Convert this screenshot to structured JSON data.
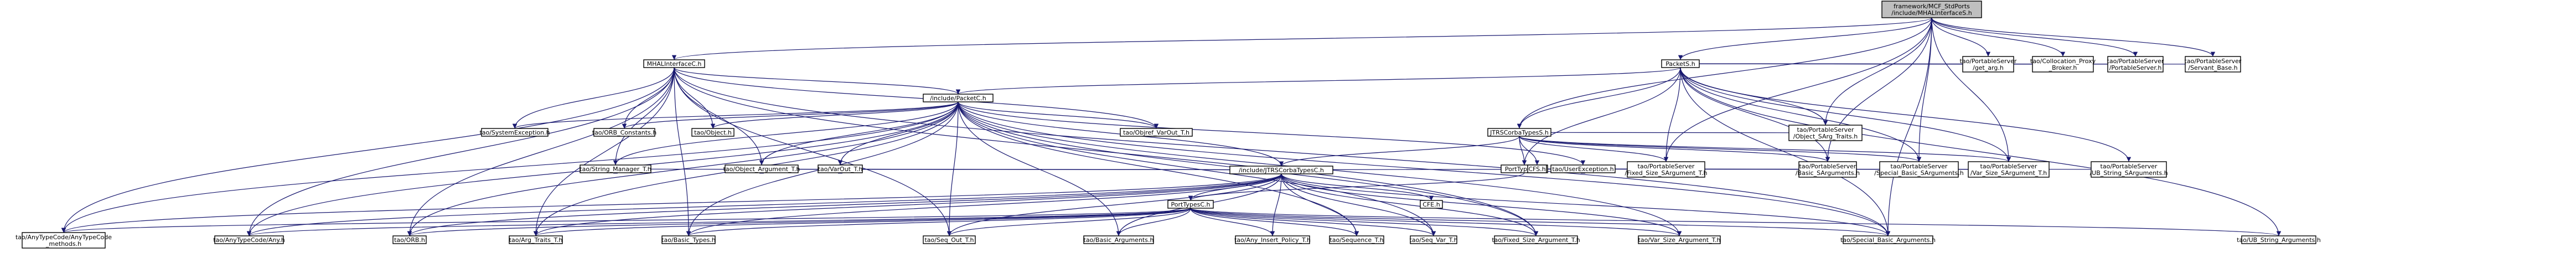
{
  "colors": {
    "node_fill": "#ffffff",
    "root_fill": "#bfbfbf",
    "node_stroke": "#000000",
    "edge": "#191970"
  },
  "nodes": [
    {
      "id": "root",
      "lines": [
        "framework/MCF_StdPorts",
        "/include/MHALInterfaceS.h"
      ],
      "root": true
    },
    {
      "id": "mhal",
      "lines": [
        "MHALInterfaceC.h"
      ]
    },
    {
      "id": "packets",
      "lines": [
        "PacketS.h"
      ]
    },
    {
      "id": "packetc",
      "lines": [
        "/include/PacketC.h"
      ]
    },
    {
      "id": "jtrss",
      "lines": [
        "JTRSCorbaTypesS.h"
      ]
    },
    {
      "id": "porttypess",
      "lines": [
        "PortTypesS.h"
      ]
    },
    {
      "id": "jtrsc",
      "lines": [
        "/include/JTRSCorbaTypesC.h"
      ]
    },
    {
      "id": "porttypesc",
      "lines": [
        "PortTypesC.h"
      ]
    },
    {
      "id": "sysexc",
      "lines": [
        "tao/SystemException.h"
      ]
    },
    {
      "id": "orbconst",
      "lines": [
        "tao/ORB_Constants.h"
      ]
    },
    {
      "id": "object",
      "lines": [
        "tao/Object.h"
      ]
    },
    {
      "id": "objvarout",
      "lines": [
        "tao/Objref_VarOut_T.h"
      ]
    },
    {
      "id": "strmgr",
      "lines": [
        "tao/String_Manager_T.h"
      ]
    },
    {
      "id": "objarg",
      "lines": [
        "tao/Object_Argument_T.h"
      ]
    },
    {
      "id": "varout",
      "lines": [
        "tao/VarOut_T.h"
      ]
    },
    {
      "id": "cfe",
      "lines": [
        "CFE.h"
      ]
    },
    {
      "id": "userexc",
      "lines": [
        "tao/UserException.h"
      ]
    },
    {
      "id": "cfs",
      "lines": [
        "CFS.h"
      ]
    },
    {
      "id": "anycode",
      "lines": [
        "tao/AnyTypeCode/AnyTypeCode",
        "_methods.h"
      ]
    },
    {
      "id": "anyany",
      "lines": [
        "tao/AnyTypeCode/Any.h"
      ]
    },
    {
      "id": "orbh",
      "lines": [
        "tao/ORB.h"
      ]
    },
    {
      "id": "argtraits",
      "lines": [
        "tao/Arg_Traits_T.h"
      ]
    },
    {
      "id": "basictypes",
      "lines": [
        "tao/Basic_Types.h"
      ]
    },
    {
      "id": "seqout",
      "lines": [
        "tao/Seq_Out_T.h"
      ]
    },
    {
      "id": "basicargs",
      "lines": [
        "tao/Basic_Arguments.h"
      ]
    },
    {
      "id": "anyinsert",
      "lines": [
        "tao/Any_Insert_Policy_T.h"
      ]
    },
    {
      "id": "sequence",
      "lines": [
        "tao/Sequence_T.h"
      ]
    },
    {
      "id": "seqvar",
      "lines": [
        "tao/Seq_Var_T.h"
      ]
    },
    {
      "id": "fixedsize",
      "lines": [
        "tao/Fixed_Size_Argument_T.h"
      ]
    },
    {
      "id": "varsize",
      "lines": [
        "tao/Var_Size_Argument_T.h"
      ]
    },
    {
      "id": "specialbasic",
      "lines": [
        "tao/Special_Basic_Arguments.h"
      ]
    },
    {
      "id": "ubstring",
      "lines": [
        "tao/UB_String_Arguments.h"
      ]
    },
    {
      "id": "ps_getarg",
      "lines": [
        "tao/PortableServer",
        "/get_arg.h"
      ]
    },
    {
      "id": "collocation",
      "lines": [
        "tao/Collocation_Proxy",
        "_Broker.h"
      ]
    },
    {
      "id": "ps_ps",
      "lines": [
        "tao/PortableServer",
        "/PortableServer.h"
      ]
    },
    {
      "id": "ps_servant",
      "lines": [
        "tao/PortableServer",
        "/Servant_Base.h"
      ]
    },
    {
      "id": "ps_objsarg",
      "lines": [
        "tao/PortableServer",
        "/Object_SArg_Traits.h"
      ]
    },
    {
      "id": "ps_fixed",
      "lines": [
        "tao/PortableServer",
        "/Fixed_Size_SArgument_T.h"
      ]
    },
    {
      "id": "ps_basic",
      "lines": [
        "tao/PortableServer",
        "/Basic_SArguments.h"
      ]
    },
    {
      "id": "ps_special",
      "lines": [
        "tao/PortableServer",
        "/Special_Basic_SArguments.h"
      ]
    },
    {
      "id": "ps_varsize",
      "lines": [
        "tao/PortableServer",
        "/Var_Size_SArgument_T.h"
      ]
    },
    {
      "id": "ps_ubstring",
      "lines": [
        "tao/PortableServer",
        "/UB_String_SArguments.h"
      ]
    }
  ],
  "edges": [
    [
      "root",
      "mhal"
    ],
    [
      "root",
      "packets"
    ],
    [
      "root",
      "ps_servant"
    ],
    [
      "root",
      "ps_ps"
    ],
    [
      "root",
      "collocation"
    ],
    [
      "root",
      "ps_getarg"
    ],
    [
      "root",
      "ps_objsarg"
    ],
    [
      "root",
      "ps_fixed"
    ],
    [
      "root",
      "ps_basic"
    ],
    [
      "root",
      "ps_special"
    ],
    [
      "root",
      "ps_varsize"
    ],
    [
      "root",
      "jtrss"
    ],
    [
      "root",
      "specialbasic"
    ],
    [
      "mhal",
      "packetc"
    ],
    [
      "mhal",
      "sysexc"
    ],
    [
      "mhal",
      "orbconst"
    ],
    [
      "mhal",
      "object"
    ],
    [
      "mhal",
      "objvarout"
    ],
    [
      "mhal",
      "strmgr"
    ],
    [
      "mhal",
      "objarg"
    ],
    [
      "mhal",
      "anycode"
    ],
    [
      "mhal",
      "anyany"
    ],
    [
      "mhal",
      "orbh"
    ],
    [
      "mhal",
      "argtraits"
    ],
    [
      "mhal",
      "basictypes"
    ],
    [
      "mhal",
      "seqout"
    ],
    [
      "mhal",
      "specialbasic"
    ],
    [
      "mhal",
      "fixedsize"
    ],
    [
      "packets",
      "jtrss"
    ],
    [
      "packets",
      "porttypess"
    ],
    [
      "packets",
      "ps_getarg"
    ],
    [
      "packets",
      "collocation"
    ],
    [
      "packets",
      "ps_ps"
    ],
    [
      "packets",
      "ps_servant"
    ],
    [
      "packets",
      "ps_objsarg"
    ],
    [
      "packets",
      "ps_fixed"
    ],
    [
      "packets",
      "ps_basic"
    ],
    [
      "packets",
      "ps_special"
    ],
    [
      "packets",
      "ps_varsize"
    ],
    [
      "packets",
      "ps_ubstring"
    ],
    [
      "packets",
      "ubstring"
    ],
    [
      "packets",
      "specialbasic"
    ],
    [
      "packets",
      "packetc"
    ],
    [
      "packetc",
      "jtrsc"
    ],
    [
      "packetc",
      "sysexc"
    ],
    [
      "packetc",
      "orbconst"
    ],
    [
      "packetc",
      "object"
    ],
    [
      "packetc",
      "objvarout"
    ],
    [
      "packetc",
      "strmgr"
    ],
    [
      "packetc",
      "objarg"
    ],
    [
      "packetc",
      "varout"
    ],
    [
      "packetc",
      "userexc"
    ],
    [
      "packetc",
      "anycode"
    ],
    [
      "packetc",
      "anyany"
    ],
    [
      "packetc",
      "orbh"
    ],
    [
      "packetc",
      "argtraits"
    ],
    [
      "packetc",
      "basictypes"
    ],
    [
      "packetc",
      "seqout"
    ],
    [
      "packetc",
      "basicargs"
    ],
    [
      "packetc",
      "specialbasic"
    ],
    [
      "packetc",
      "fixedsize"
    ],
    [
      "packetc",
      "varsize"
    ],
    [
      "packetc",
      "sequence"
    ],
    [
      "packetc",
      "seqvar"
    ],
    [
      "jtrss",
      "jtrsc"
    ],
    [
      "jtrss",
      "cfs"
    ],
    [
      "jtrss",
      "porttypess"
    ],
    [
      "jtrss",
      "ps_objsarg"
    ],
    [
      "jtrss",
      "ps_fixed"
    ],
    [
      "jtrss",
      "ps_basic"
    ],
    [
      "jtrss",
      "ps_special"
    ],
    [
      "jtrss",
      "ps_varsize"
    ],
    [
      "porttypess",
      "porttypesc"
    ],
    [
      "porttypess",
      "ps_fixed"
    ],
    [
      "porttypess",
      "ps_basic"
    ],
    [
      "porttypess",
      "ps_special"
    ],
    [
      "porttypess",
      "ps_varsize"
    ],
    [
      "porttypess",
      "ps_ubstring"
    ],
    [
      "jtrsc",
      "porttypesc"
    ],
    [
      "jtrsc",
      "cfe"
    ],
    [
      "jtrsc",
      "userexc"
    ],
    [
      "jtrsc",
      "varout"
    ],
    [
      "jtrsc",
      "objarg"
    ],
    [
      "jtrsc",
      "strmgr"
    ],
    [
      "jtrsc",
      "anycode"
    ],
    [
      "jtrsc",
      "anyany"
    ],
    [
      "jtrsc",
      "orbh"
    ],
    [
      "jtrsc",
      "argtraits"
    ],
    [
      "jtrsc",
      "basictypes"
    ],
    [
      "jtrsc",
      "seqout"
    ],
    [
      "jtrsc",
      "basicargs"
    ],
    [
      "jtrsc",
      "anyinsert"
    ],
    [
      "jtrsc",
      "sequence"
    ],
    [
      "jtrsc",
      "seqvar"
    ],
    [
      "jtrsc",
      "fixedsize"
    ],
    [
      "jtrsc",
      "varsize"
    ],
    [
      "jtrsc",
      "specialbasic"
    ],
    [
      "porttypesc",
      "anycode"
    ],
    [
      "porttypesc",
      "anyany"
    ],
    [
      "porttypesc",
      "orbh"
    ],
    [
      "porttypesc",
      "argtraits"
    ],
    [
      "porttypesc",
      "basictypes"
    ],
    [
      "porttypesc",
      "seqout"
    ],
    [
      "porttypesc",
      "basicargs"
    ],
    [
      "porttypesc",
      "anyinsert"
    ],
    [
      "porttypesc",
      "sequence"
    ],
    [
      "porttypesc",
      "seqvar"
    ],
    [
      "porttypesc",
      "fixedsize"
    ],
    [
      "porttypesc",
      "varsize"
    ],
    [
      "porttypesc",
      "specialbasic"
    ],
    [
      "porttypesc",
      "ubstring"
    ]
  ]
}
